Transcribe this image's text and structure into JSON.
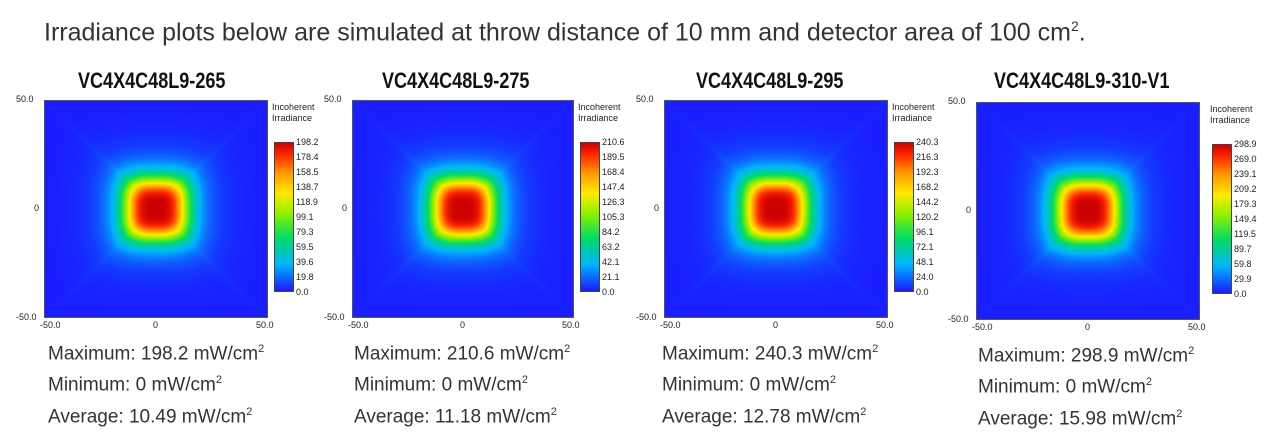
{
  "header": {
    "text": "Irradiance plots below are simulated at throw distance of 10 mm and detector area of 100 cm",
    "sup": "2",
    "end": "."
  },
  "chart_data": [
    {
      "type": "heatmap",
      "title": "VC4X4C48L9-265",
      "colorbar_title": "Incoherent Irradiance",
      "colorbar_ticks": [
        "198.2",
        "178.4",
        "158.5",
        "138.7",
        "118.9",
        "99.1",
        "79.3",
        "59.5",
        "39.6",
        "19.8",
        "0.0"
      ],
      "x_ticks": [
        "-50.0",
        "0",
        "50.0"
      ],
      "y_ticks": [
        "50.0",
        "0",
        "-50.0"
      ],
      "xlim": [
        -50,
        50
      ],
      "ylim": [
        -50,
        50
      ],
      "max": 198.2,
      "min": 0,
      "avg": 10.49,
      "stats": {
        "max": "Maximum: 198.2 mW/cm",
        "min": "Minimum: 0 mW/cm",
        "avg": "Average: 10.49 mW/cm",
        "unit_sup": "2"
      }
    },
    {
      "type": "heatmap",
      "title": "VC4X4C48L9-275",
      "colorbar_title": "Incoherent Irradiance",
      "colorbar_ticks": [
        "210.6",
        "189.5",
        "168.4",
        "147.4",
        "126.3",
        "105.3",
        "84.2",
        "63.2",
        "42.1",
        "21.1",
        "0.0"
      ],
      "x_ticks": [
        "-50.0",
        "0",
        "50.0"
      ],
      "y_ticks": [
        "50.0",
        "0",
        "-50.0"
      ],
      "xlim": [
        -50,
        50
      ],
      "ylim": [
        -50,
        50
      ],
      "max": 210.6,
      "min": 0,
      "avg": 11.18,
      "stats": {
        "max": "Maximum: 210.6 mW/cm",
        "min": "Minimum: 0 mW/cm",
        "avg": "Average: 11.18 mW/cm",
        "unit_sup": "2"
      }
    },
    {
      "type": "heatmap",
      "title": "VC4X4C48L9-295",
      "colorbar_title": "Incoherent Irradiance",
      "colorbar_ticks": [
        "240.3",
        "216.3",
        "192.3",
        "168.2",
        "144.2",
        "120.2",
        "96.1",
        "72.1",
        "48.1",
        "24.0",
        "0.0"
      ],
      "x_ticks": [
        "-50.0",
        "0",
        "50.0"
      ],
      "y_ticks": [
        "50.0",
        "0",
        "-50.0"
      ],
      "xlim": [
        -50,
        50
      ],
      "ylim": [
        -50,
        50
      ],
      "max": 240.3,
      "min": 0,
      "avg": 12.78,
      "stats": {
        "max": "Maximum: 240.3 mW/cm",
        "min": "Minimum: 0 mW/cm",
        "avg": "Average: 12.78 mW/cm",
        "unit_sup": "2"
      }
    },
    {
      "type": "heatmap",
      "title": "VC4X4C48L9-310-V1",
      "colorbar_title": "Incoherent Irradiance",
      "colorbar_ticks": [
        "298.9",
        "269.0",
        "239.1",
        "209.2",
        "179.3",
        "149.4",
        "119.5",
        "89.7",
        "59.8",
        "29.9",
        "0.0"
      ],
      "x_ticks": [
        "-50.0",
        "0",
        "50.0"
      ],
      "y_ticks": [
        "50.0",
        "0",
        "-50.0"
      ],
      "xlim": [
        -50,
        50
      ],
      "ylim": [
        -50,
        50
      ],
      "max": 298.9,
      "min": 0,
      "avg": 15.98,
      "stats": {
        "max": "Maximum: 298.9 mW/cm",
        "min": "Minimum: 0 mW/cm",
        "avg": "Average: 15.98 mW/cm",
        "unit_sup": "2"
      }
    }
  ]
}
